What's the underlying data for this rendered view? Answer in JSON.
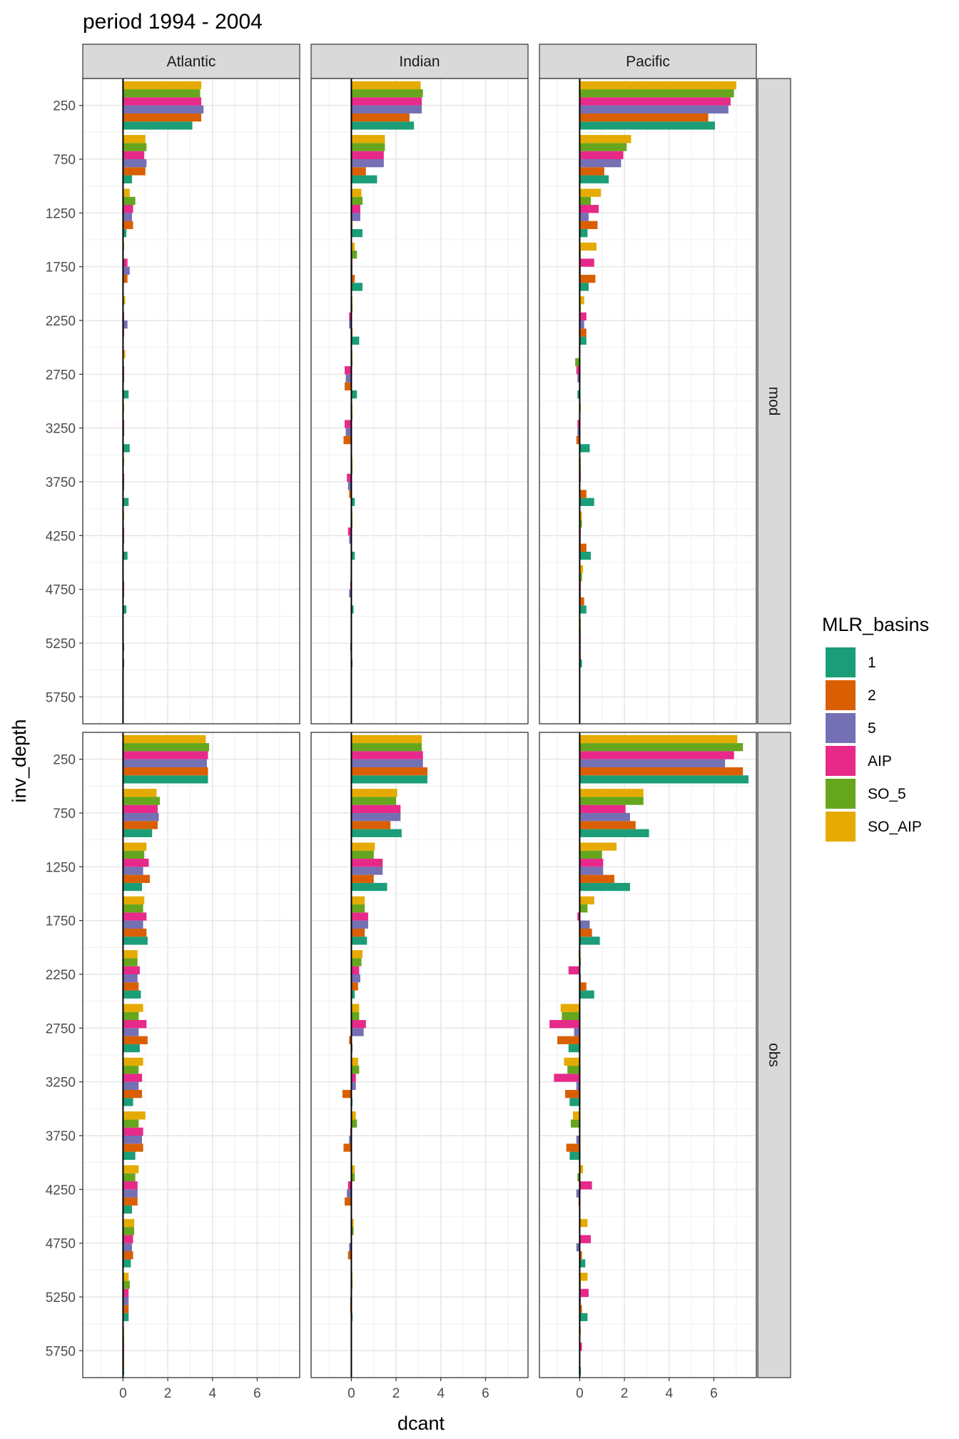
{
  "chart_data": {
    "type": "bar",
    "title": "period 1994 - 2004",
    "xlabel": "dcant",
    "ylabel": "inv_depth",
    "xlim": [
      -1.8,
      7.9
    ],
    "x_ticks": [
      0,
      2,
      4,
      6
    ],
    "grid": true,
    "orientation": "horizontal",
    "columns": [
      "Atlantic",
      "Indian",
      "Pacific"
    ],
    "rows": [
      "mod",
      "obs"
    ],
    "depths": [
      250,
      750,
      1250,
      1750,
      2250,
      2750,
      3250,
      3750,
      4250,
      4750,
      5250,
      5750
    ],
    "legend": {
      "title": "MLR_basins",
      "position": "right",
      "items": [
        {
          "name": "1",
          "color": "#1B9E77"
        },
        {
          "name": "2",
          "color": "#D95F02"
        },
        {
          "name": "5",
          "color": "#7570B3"
        },
        {
          "name": "AIP",
          "color": "#E7298A"
        },
        {
          "name": "SO_5",
          "color": "#66A61E"
        },
        {
          "name": "SO_AIP",
          "color": "#E6AB02"
        }
      ]
    },
    "series_order": [
      "1",
      "2",
      "5",
      "AIP",
      "SO_5",
      "SO_AIP"
    ],
    "panels": {
      "mod": {
        "Atlantic": {
          "1": [
            3.1,
            0.4,
            0.15,
            0.0,
            0.0,
            0.25,
            0.3,
            0.25,
            0.2,
            0.15,
            0.05,
            0.0
          ],
          "2": [
            3.5,
            1.0,
            0.45,
            0.2,
            0.05,
            0.0,
            0.0,
            0.0,
            0.0,
            0.0,
            0.0,
            0.0
          ],
          "5": [
            3.6,
            1.05,
            0.4,
            0.3,
            0.2,
            0.05,
            0.05,
            0.05,
            0.05,
            0.05,
            0.05,
            0.0
          ],
          "AIP": [
            3.5,
            0.95,
            0.45,
            0.2,
            0.05,
            0.05,
            0.05,
            0.05,
            0.05,
            0.05,
            0.0,
            0.0
          ],
          "SO_5": [
            3.45,
            1.05,
            0.55,
            0.0,
            0.0,
            0.0,
            0.0,
            0.0,
            0.0,
            0.0,
            0.0,
            0.0
          ],
          "SO_AIP": [
            3.5,
            1.0,
            0.3,
            0.05,
            0.1,
            0.1,
            0.05,
            0.05,
            0.05,
            0.0,
            0.0,
            0.0
          ]
        },
        "Indian": {
          "1": [
            2.8,
            1.15,
            0.5,
            0.5,
            0.35,
            0.25,
            0.0,
            0.15,
            0.15,
            0.1,
            0.05,
            0.0
          ],
          "2": [
            2.6,
            0.65,
            0.05,
            0.15,
            0.05,
            -0.3,
            -0.35,
            -0.1,
            0.0,
            0.0,
            0.0,
            0.0
          ],
          "5": [
            3.15,
            1.45,
            0.4,
            0.05,
            -0.1,
            -0.25,
            -0.25,
            -0.15,
            -0.1,
            -0.1,
            -0.05,
            0.0
          ],
          "AIP": [
            3.15,
            1.45,
            0.4,
            0.05,
            -0.1,
            -0.3,
            -0.3,
            -0.2,
            -0.15,
            -0.05,
            0.0,
            0.0
          ],
          "SO_5": [
            3.2,
            1.5,
            0.5,
            0.25,
            0.05,
            0.05,
            0.05,
            0.05,
            0.05,
            0.0,
            0.0,
            0.0
          ],
          "SO_AIP": [
            3.1,
            1.5,
            0.45,
            0.15,
            0.05,
            0.05,
            0.05,
            0.05,
            0.05,
            0.0,
            0.0,
            0.0
          ]
        },
        "Pacific": {
          "1": [
            6.05,
            1.3,
            0.35,
            0.4,
            0.3,
            -0.1,
            0.45,
            0.65,
            0.5,
            0.3,
            0.1,
            0.0
          ],
          "2": [
            5.75,
            1.1,
            0.8,
            0.7,
            0.3,
            0.0,
            -0.15,
            0.3,
            0.3,
            0.2,
            0.05,
            0.0
          ],
          "5": [
            6.65,
            1.85,
            0.4,
            0.05,
            0.2,
            -0.1,
            -0.1,
            0.0,
            0.05,
            0.05,
            0.05,
            0.0
          ],
          "AIP": [
            6.75,
            1.95,
            0.85,
            0.65,
            0.3,
            -0.15,
            -0.1,
            0.05,
            0.05,
            0.05,
            0.05,
            0.0
          ],
          "SO_5": [
            6.9,
            2.1,
            0.5,
            0.05,
            0.05,
            -0.2,
            0.0,
            0.05,
            0.1,
            0.1,
            0.05,
            0.0
          ],
          "SO_AIP": [
            7.0,
            2.3,
            0.95,
            0.75,
            0.2,
            0.0,
            0.05,
            0.05,
            0.1,
            0.15,
            0.05,
            0.0
          ]
        }
      },
      "obs": {
        "Atlantic": {
          "1": [
            3.8,
            1.3,
            0.85,
            1.1,
            0.8,
            0.75,
            0.45,
            0.55,
            0.4,
            0.35,
            0.25,
            0.05
          ],
          "2": [
            3.8,
            1.55,
            1.2,
            1.05,
            0.7,
            1.1,
            0.85,
            0.9,
            0.65,
            0.45,
            0.25,
            0.05
          ],
          "5": [
            3.75,
            1.6,
            0.9,
            0.9,
            0.65,
            0.7,
            0.7,
            0.85,
            0.65,
            0.4,
            0.25,
            0.05
          ],
          "AIP": [
            3.8,
            1.55,
            1.15,
            1.05,
            0.75,
            1.05,
            0.85,
            0.9,
            0.65,
            0.45,
            0.25,
            0.05
          ],
          "SO_5": [
            3.85,
            1.65,
            0.95,
            0.9,
            0.65,
            0.7,
            0.7,
            0.7,
            0.55,
            0.5,
            0.3,
            0.05
          ],
          "SO_AIP": [
            3.7,
            1.5,
            1.05,
            0.95,
            0.65,
            0.9,
            0.9,
            1.0,
            0.7,
            0.5,
            0.25,
            0.05
          ]
        },
        "Indian": {
          "1": [
            3.4,
            2.25,
            1.6,
            0.7,
            0.15,
            0.05,
            0.05,
            0.0,
            0.0,
            0.0,
            0.05,
            0.0
          ],
          "2": [
            3.4,
            1.75,
            1.0,
            0.6,
            0.3,
            -0.1,
            -0.4,
            -0.35,
            -0.3,
            -0.15,
            -0.05,
            0.0
          ],
          "5": [
            3.2,
            2.2,
            1.4,
            0.75,
            0.4,
            0.55,
            0.2,
            -0.1,
            -0.2,
            -0.1,
            -0.05,
            0.0
          ],
          "AIP": [
            3.2,
            2.2,
            1.4,
            0.75,
            0.35,
            0.65,
            0.2,
            -0.05,
            -0.15,
            0.0,
            0.0,
            0.0
          ],
          "SO_5": [
            3.15,
            2.0,
            1.0,
            0.6,
            0.45,
            0.35,
            0.35,
            0.25,
            0.15,
            0.1,
            0.05,
            0.0
          ],
          "SO_AIP": [
            3.15,
            2.05,
            1.05,
            0.6,
            0.5,
            0.35,
            0.3,
            0.2,
            0.15,
            0.1,
            0.05,
            0.0
          ]
        },
        "Pacific": {
          "1": [
            7.55,
            3.1,
            2.25,
            0.9,
            0.65,
            -0.5,
            -0.45,
            -0.45,
            0.0,
            0.25,
            0.35,
            0.05
          ],
          "2": [
            7.3,
            2.5,
            1.55,
            0.55,
            0.3,
            -1.0,
            -0.65,
            -0.6,
            -0.05,
            0.1,
            0.1,
            0.0
          ],
          "5": [
            6.5,
            2.25,
            1.05,
            0.45,
            0.05,
            -0.25,
            -0.15,
            -0.15,
            -0.15,
            -0.15,
            0.05,
            0.0
          ],
          "AIP": [
            6.9,
            2.05,
            1.05,
            -0.1,
            -0.5,
            -1.35,
            -1.15,
            0.0,
            0.55,
            0.5,
            0.4,
            0.1
          ],
          "SO_5": [
            7.3,
            2.85,
            1.0,
            0.35,
            0.05,
            -0.8,
            -0.55,
            -0.4,
            -0.1,
            0.0,
            0.05,
            0.0
          ],
          "SO_AIP": [
            7.05,
            2.85,
            1.65,
            0.65,
            -0.05,
            -0.85,
            -0.7,
            -0.3,
            0.15,
            0.35,
            0.35,
            0.05
          ]
        }
      }
    }
  }
}
